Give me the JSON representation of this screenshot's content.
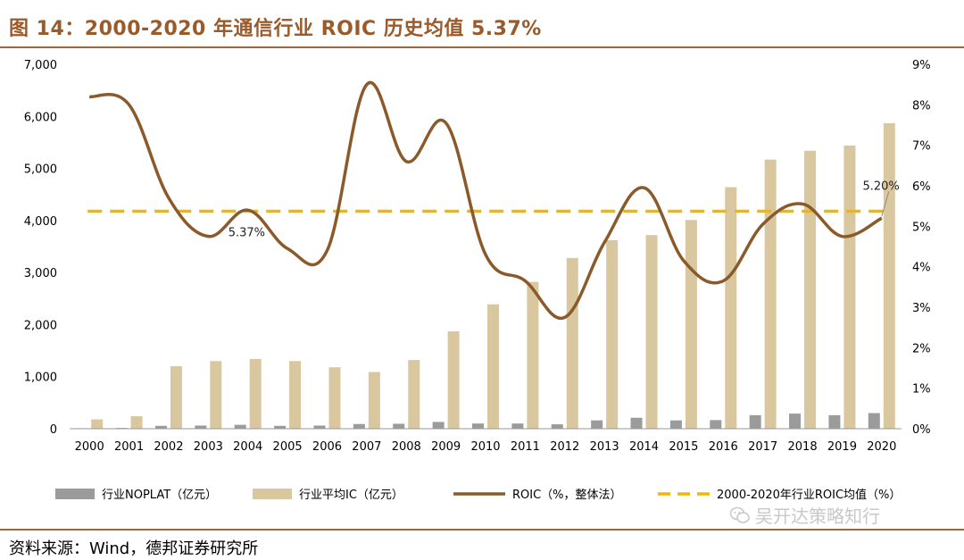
{
  "title": "图 14：2000-2020 年通信行业 ROIC 历史均值 5.37%",
  "source": "资料来源：Wind，德邦证券研究所",
  "watermark": "吴开达策略知行",
  "chart_data": {
    "type": "bar",
    "categories": [
      "2000",
      "2001",
      "2002",
      "2003",
      "2004",
      "2005",
      "2006",
      "2007",
      "2008",
      "2009",
      "2010",
      "2011",
      "2012",
      "2013",
      "2014",
      "2015",
      "2016",
      "2017",
      "2018",
      "2019",
      "2020"
    ],
    "y_left": {
      "ylim": [
        0,
        7000
      ],
      "ticks": [
        0,
        1000,
        2000,
        3000,
        4000,
        5000,
        6000,
        7000
      ],
      "tick_labels": [
        "0",
        "1,000",
        "2,000",
        "3,000",
        "4,000",
        "5,000",
        "6,000",
        "7,000"
      ]
    },
    "y_right": {
      "ylim": [
        0,
        9
      ],
      "ticks": [
        0,
        1,
        2,
        3,
        4,
        5,
        6,
        7,
        8,
        9
      ],
      "tick_labels": [
        "0%",
        "1%",
        "2%",
        "3%",
        "4%",
        "5%",
        "6%",
        "7%",
        "8%",
        "9%"
      ]
    },
    "series": [
      {
        "name": "行业NOPLAT（亿元）",
        "type": "bar",
        "axis": "left",
        "color": "#9b9b9b",
        "values": [
          10,
          15,
          55,
          60,
          75,
          55,
          60,
          90,
          95,
          130,
          100,
          100,
          85,
          160,
          210,
          160,
          165,
          260,
          290,
          260,
          300
        ]
      },
      {
        "name": "行业平均IC（亿元）",
        "type": "bar",
        "axis": "left",
        "color": "#d9c7a0",
        "values": [
          180,
          240,
          1200,
          1300,
          1340,
          1300,
          1180,
          1090,
          1320,
          1870,
          2390,
          2820,
          3280,
          3620,
          3720,
          4010,
          4640,
          5170,
          5340,
          5440,
          5870
        ]
      },
      {
        "name": "ROIC（%，整体法）",
        "type": "line",
        "axis": "right",
        "color": "#8b5a2b",
        "values": [
          8.2,
          8.0,
          5.7,
          4.75,
          5.4,
          4.45,
          4.4,
          8.5,
          6.6,
          7.55,
          4.3,
          3.65,
          2.75,
          4.6,
          5.95,
          4.15,
          3.65,
          5.05,
          5.55,
          4.75,
          5.2
        ]
      },
      {
        "name": "2000-2020年行业ROIC均值（%）",
        "type": "line",
        "style": "dashed",
        "axis": "right",
        "color": "#f2b705",
        "value": 5.37
      }
    ],
    "annotations": [
      {
        "text": "5.37%",
        "x": "2004",
        "y": 5.37
      },
      {
        "text": "5.20%",
        "x": "2020",
        "y": 5.2
      }
    ],
    "legend": "bottom"
  }
}
